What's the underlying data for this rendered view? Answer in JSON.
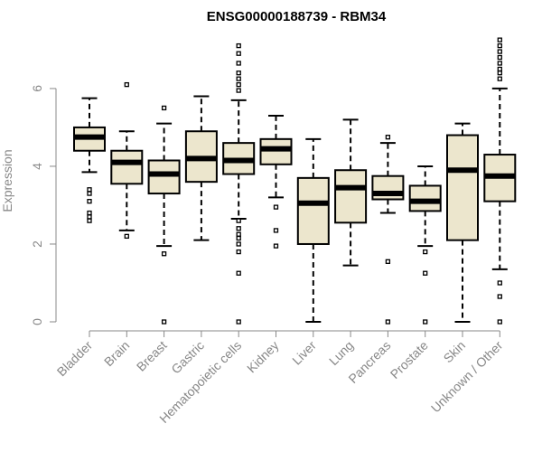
{
  "chart_data": {
    "type": "boxplot",
    "title": "ENSG00000188739 - RBM34",
    "xlabel": "",
    "ylabel": "Expression",
    "ylim": [
      0,
      7.3
    ],
    "yticks": [
      0,
      2,
      4,
      6
    ],
    "categories": [
      "Bladder",
      "Brain",
      "Breast",
      "Gastric",
      "Hematopoietic cells",
      "Kidney",
      "Liver",
      "Lung",
      "Pancreas",
      "Prostate",
      "Skin",
      "Unknown / Other"
    ],
    "boxes": [
      {
        "name": "Bladder",
        "whisker_low": 3.85,
        "q1": 4.4,
        "median": 4.75,
        "q3": 5.0,
        "whisker_high": 5.75,
        "outliers": [
          3.4,
          3.3,
          3.1,
          2.8,
          2.7,
          2.6
        ]
      },
      {
        "name": "Brain",
        "whisker_low": 2.35,
        "q1": 3.55,
        "median": 4.1,
        "q3": 4.4,
        "whisker_high": 4.9,
        "outliers": [
          6.1,
          2.2
        ]
      },
      {
        "name": "Breast",
        "whisker_low": 1.95,
        "q1": 3.3,
        "median": 3.8,
        "q3": 4.15,
        "whisker_high": 5.1,
        "outliers": [
          5.5,
          1.75,
          0.0
        ]
      },
      {
        "name": "Gastric",
        "whisker_low": 2.1,
        "q1": 3.6,
        "median": 4.2,
        "q3": 4.9,
        "whisker_high": 5.8,
        "outliers": []
      },
      {
        "name": "Hematopoietic cells",
        "whisker_low": 2.65,
        "q1": 3.8,
        "median": 4.15,
        "q3": 4.6,
        "whisker_high": 5.7,
        "outliers": [
          7.1,
          6.9,
          6.65,
          6.4,
          6.25,
          6.1,
          5.95,
          2.6,
          2.4,
          2.25,
          2.15,
          2.0,
          1.8,
          1.25,
          0.0
        ]
      },
      {
        "name": "Kidney",
        "whisker_low": 3.2,
        "q1": 4.05,
        "median": 4.45,
        "q3": 4.7,
        "whisker_high": 5.3,
        "outliers": [
          2.95,
          2.35,
          1.95
        ]
      },
      {
        "name": "Liver",
        "whisker_low": 0.0,
        "q1": 2.0,
        "median": 3.05,
        "q3": 3.7,
        "whisker_high": 4.7,
        "outliers": []
      },
      {
        "name": "Lung",
        "whisker_low": 1.45,
        "q1": 2.55,
        "median": 3.45,
        "q3": 3.9,
        "whisker_high": 5.2,
        "outliers": []
      },
      {
        "name": "Pancreas",
        "whisker_low": 2.8,
        "q1": 3.15,
        "median": 3.3,
        "q3": 3.75,
        "whisker_high": 4.6,
        "outliers": [
          4.75,
          1.55,
          0.0
        ]
      },
      {
        "name": "Prostate",
        "whisker_low": 1.95,
        "q1": 2.85,
        "median": 3.1,
        "q3": 3.5,
        "whisker_high": 4.0,
        "outliers": [
          1.8,
          1.25,
          0.0
        ]
      },
      {
        "name": "Skin",
        "whisker_low": 0.0,
        "q1": 2.1,
        "median": 3.9,
        "q3": 4.8,
        "whisker_high": 5.1,
        "outliers": []
      },
      {
        "name": "Unknown / Other",
        "whisker_low": 1.35,
        "q1": 3.1,
        "median": 3.75,
        "q3": 4.3,
        "whisker_high": 6.0,
        "outliers": [
          7.25,
          7.1,
          6.95,
          6.8,
          6.65,
          6.5,
          6.4,
          6.25,
          1.0,
          0.65,
          0.0
        ]
      }
    ],
    "colors": {
      "box_fill": "#ece6cd",
      "box_stroke": "#000000",
      "axis": "#888888",
      "text": "#888888",
      "title": "#000000"
    }
  }
}
